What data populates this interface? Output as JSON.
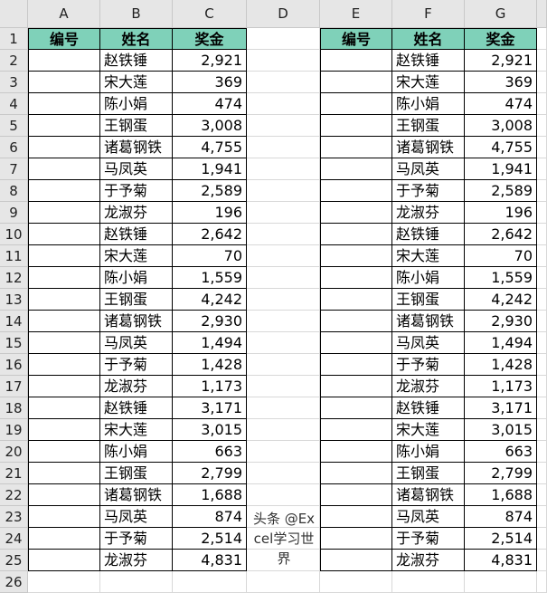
{
  "columns": [
    "A",
    "B",
    "C",
    "D",
    "E",
    "F",
    "G"
  ],
  "headers": [
    "编号",
    "姓名",
    "奖金"
  ],
  "rows": [
    [
      "赵铁锤",
      "2,921"
    ],
    [
      "宋大莲",
      "369"
    ],
    [
      "陈小娟",
      "474"
    ],
    [
      "王钢蛋",
      "3,008"
    ],
    [
      "诸葛钢铁",
      "4,755"
    ],
    [
      "马凤英",
      "1,941"
    ],
    [
      "于予菊",
      "2,589"
    ],
    [
      "龙淑芬",
      "196"
    ],
    [
      "赵铁锤",
      "2,642"
    ],
    [
      "宋大莲",
      "70"
    ],
    [
      "陈小娟",
      "1,559"
    ],
    [
      "王钢蛋",
      "4,242"
    ],
    [
      "诸葛钢铁",
      "2,930"
    ],
    [
      "马凤英",
      "1,494"
    ],
    [
      "于予菊",
      "1,428"
    ],
    [
      "龙淑芬",
      "1,173"
    ],
    [
      "赵铁锤",
      "3,171"
    ],
    [
      "宋大莲",
      "3,015"
    ],
    [
      "陈小娟",
      "663"
    ],
    [
      "王钢蛋",
      "2,799"
    ],
    [
      "诸葛钢铁",
      "1,688"
    ],
    [
      "马凤英",
      "874"
    ],
    [
      "于予菊",
      "2,514"
    ],
    [
      "龙淑芬",
      "4,831"
    ]
  ],
  "watermark": "头条 @Excel学习世界",
  "colors": {
    "header_fill": "#7fd1b9"
  }
}
